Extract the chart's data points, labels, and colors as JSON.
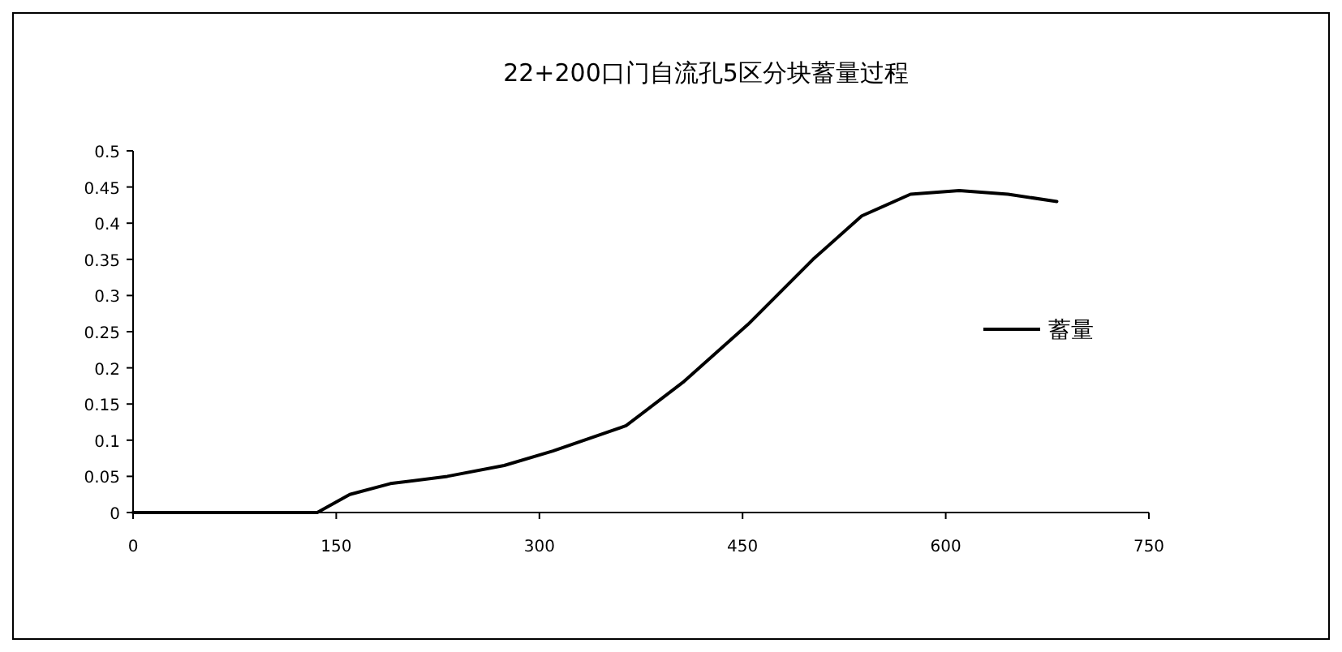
{
  "chart_data": {
    "type": "line",
    "title": "22+200口门自流孔5区分块蓄量过程",
    "x": [
      0,
      136,
      160,
      190,
      232,
      274,
      310,
      364,
      406,
      454,
      502,
      538,
      574,
      610,
      646,
      682
    ],
    "series": [
      {
        "name": "蓄量",
        "color": "#000000",
        "values": [
          0,
          0,
          0.025,
          0.04,
          0.05,
          0.065,
          0.085,
          0.12,
          0.18,
          0.26,
          0.35,
          0.41,
          0.44,
          0.445,
          0.44,
          0.43
        ]
      }
    ],
    "xlim": [
      0,
      750
    ],
    "xticks": [
      0,
      150,
      300,
      450,
      600,
      750
    ],
    "ylim": [
      0,
      0.5
    ],
    "yticks": [
      0,
      0.05,
      0.1,
      0.15,
      0.2,
      0.25,
      0.3,
      0.35,
      0.4,
      0.45,
      0.5
    ],
    "legend": "right",
    "grid": false
  }
}
